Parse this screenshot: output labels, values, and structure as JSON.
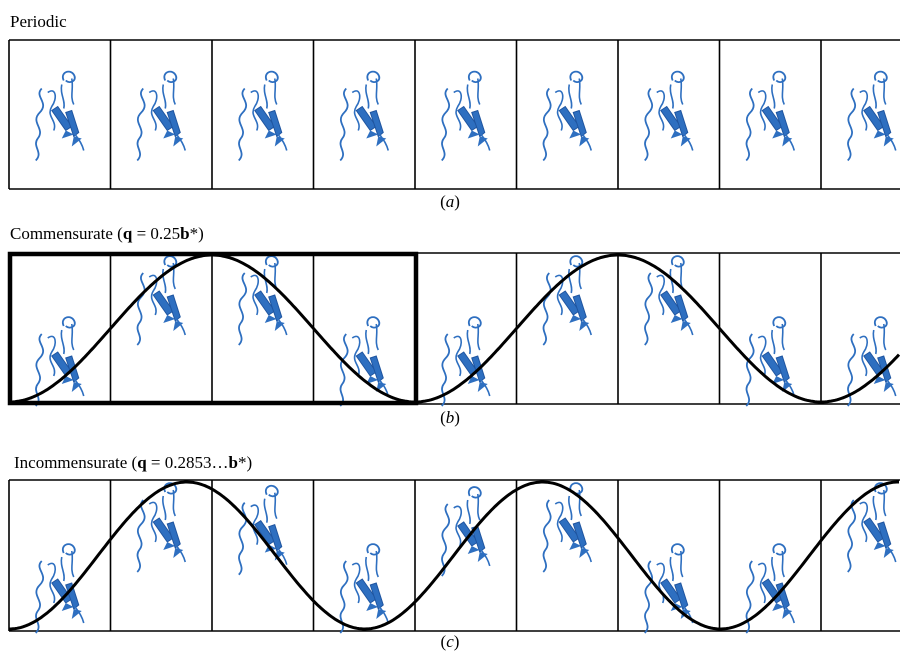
{
  "panels": [
    {
      "id": "a",
      "title_plain": "Periodic",
      "caption_label": "a",
      "cells": 9,
      "modulation": null
    },
    {
      "id": "b",
      "title_prefix": "Commensurate (",
      "title_q": "q",
      "title_mid": " = 0.25",
      "title_b": "b",
      "title_suffix": "*)",
      "caption_label": "b",
      "cells": 9,
      "modulation": {
        "q": 0.25,
        "highlight_cells": 4
      }
    },
    {
      "id": "c",
      "title_prefix": "Incommensurate (",
      "title_q": "q",
      "title_mid": " = 0.2853…",
      "title_b": "b",
      "title_suffix": "*)",
      "caption_label": "c",
      "cells": 9,
      "modulation": {
        "q": 0.2853
      }
    }
  ],
  "colors": {
    "protein": "#2e6fc0",
    "protein_dark": "#1f55a0",
    "lines": "#000000"
  },
  "icon": "protein-beta-hairpin-icon"
}
